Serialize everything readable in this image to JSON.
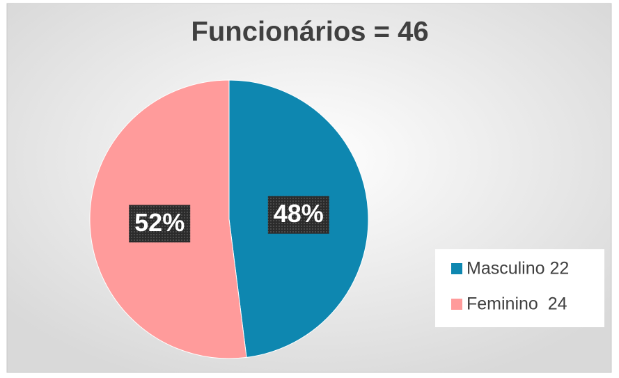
{
  "chart_data": {
    "type": "pie",
    "title": "Funcionários = 46",
    "categories": [
      "Masculino 22",
      "Feminino  24"
    ],
    "values": [
      48,
      52
    ],
    "value_labels": [
      "48%",
      "52%"
    ],
    "colors": [
      "#0e87b0",
      "#ff9b9b"
    ],
    "legend": "right"
  }
}
